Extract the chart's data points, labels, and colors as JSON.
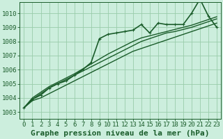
{
  "title": "Graphe pression niveau de la mer (hPa)",
  "background_color": "#cceedd",
  "plot_bg_color": "#cceedd",
  "grid_color": "#99ccaa",
  "line_color": "#1a5c2a",
  "xlim": [
    -0.5,
    23.5
  ],
  "ylim": [
    1002.5,
    1010.8
  ],
  "yticks": [
    1003,
    1004,
    1005,
    1006,
    1007,
    1008,
    1009,
    1010
  ],
  "xticks": [
    0,
    1,
    2,
    3,
    4,
    5,
    6,
    7,
    8,
    9,
    10,
    11,
    12,
    13,
    14,
    15,
    16,
    17,
    18,
    19,
    20,
    21,
    22,
    23
  ],
  "series": [
    [
      1003.3,
      1003.9,
      1004.2,
      1004.7,
      1005.0,
      1005.2,
      1005.6,
      1006.0,
      1006.5,
      1008.2,
      1008.5,
      1008.6,
      1008.7,
      1008.8,
      1009.2,
      1008.6,
      1009.3,
      1009.2,
      1009.2,
      1009.2,
      1010.0,
      1011.0,
      1009.8,
      1009.0
    ],
    [
      1003.3,
      1003.8,
      1004.0,
      1004.3,
      1004.6,
      1004.9,
      1005.2,
      1005.5,
      1005.8,
      1006.1,
      1006.4,
      1006.7,
      1007.0,
      1007.3,
      1007.5,
      1007.7,
      1007.9,
      1008.1,
      1008.3,
      1008.5,
      1008.7,
      1008.9,
      1009.1,
      1009.3
    ],
    [
      1003.3,
      1003.9,
      1004.3,
      1004.7,
      1005.0,
      1005.3,
      1005.6,
      1005.9,
      1006.2,
      1006.5,
      1006.8,
      1007.1,
      1007.4,
      1007.7,
      1008.0,
      1008.2,
      1008.4,
      1008.6,
      1008.7,
      1008.85,
      1009.0,
      1009.2,
      1009.4,
      1009.6
    ],
    [
      1003.3,
      1004.0,
      1004.4,
      1004.8,
      1005.1,
      1005.4,
      1005.7,
      1006.05,
      1006.4,
      1006.75,
      1007.1,
      1007.4,
      1007.7,
      1008.0,
      1008.25,
      1008.4,
      1008.55,
      1008.7,
      1008.85,
      1009.0,
      1009.15,
      1009.35,
      1009.55,
      1009.75
    ]
  ],
  "linewidths": [
    1.2,
    1.0,
    1.0,
    1.0
  ],
  "title_fontsize": 8,
  "tick_fontsize": 6.5
}
